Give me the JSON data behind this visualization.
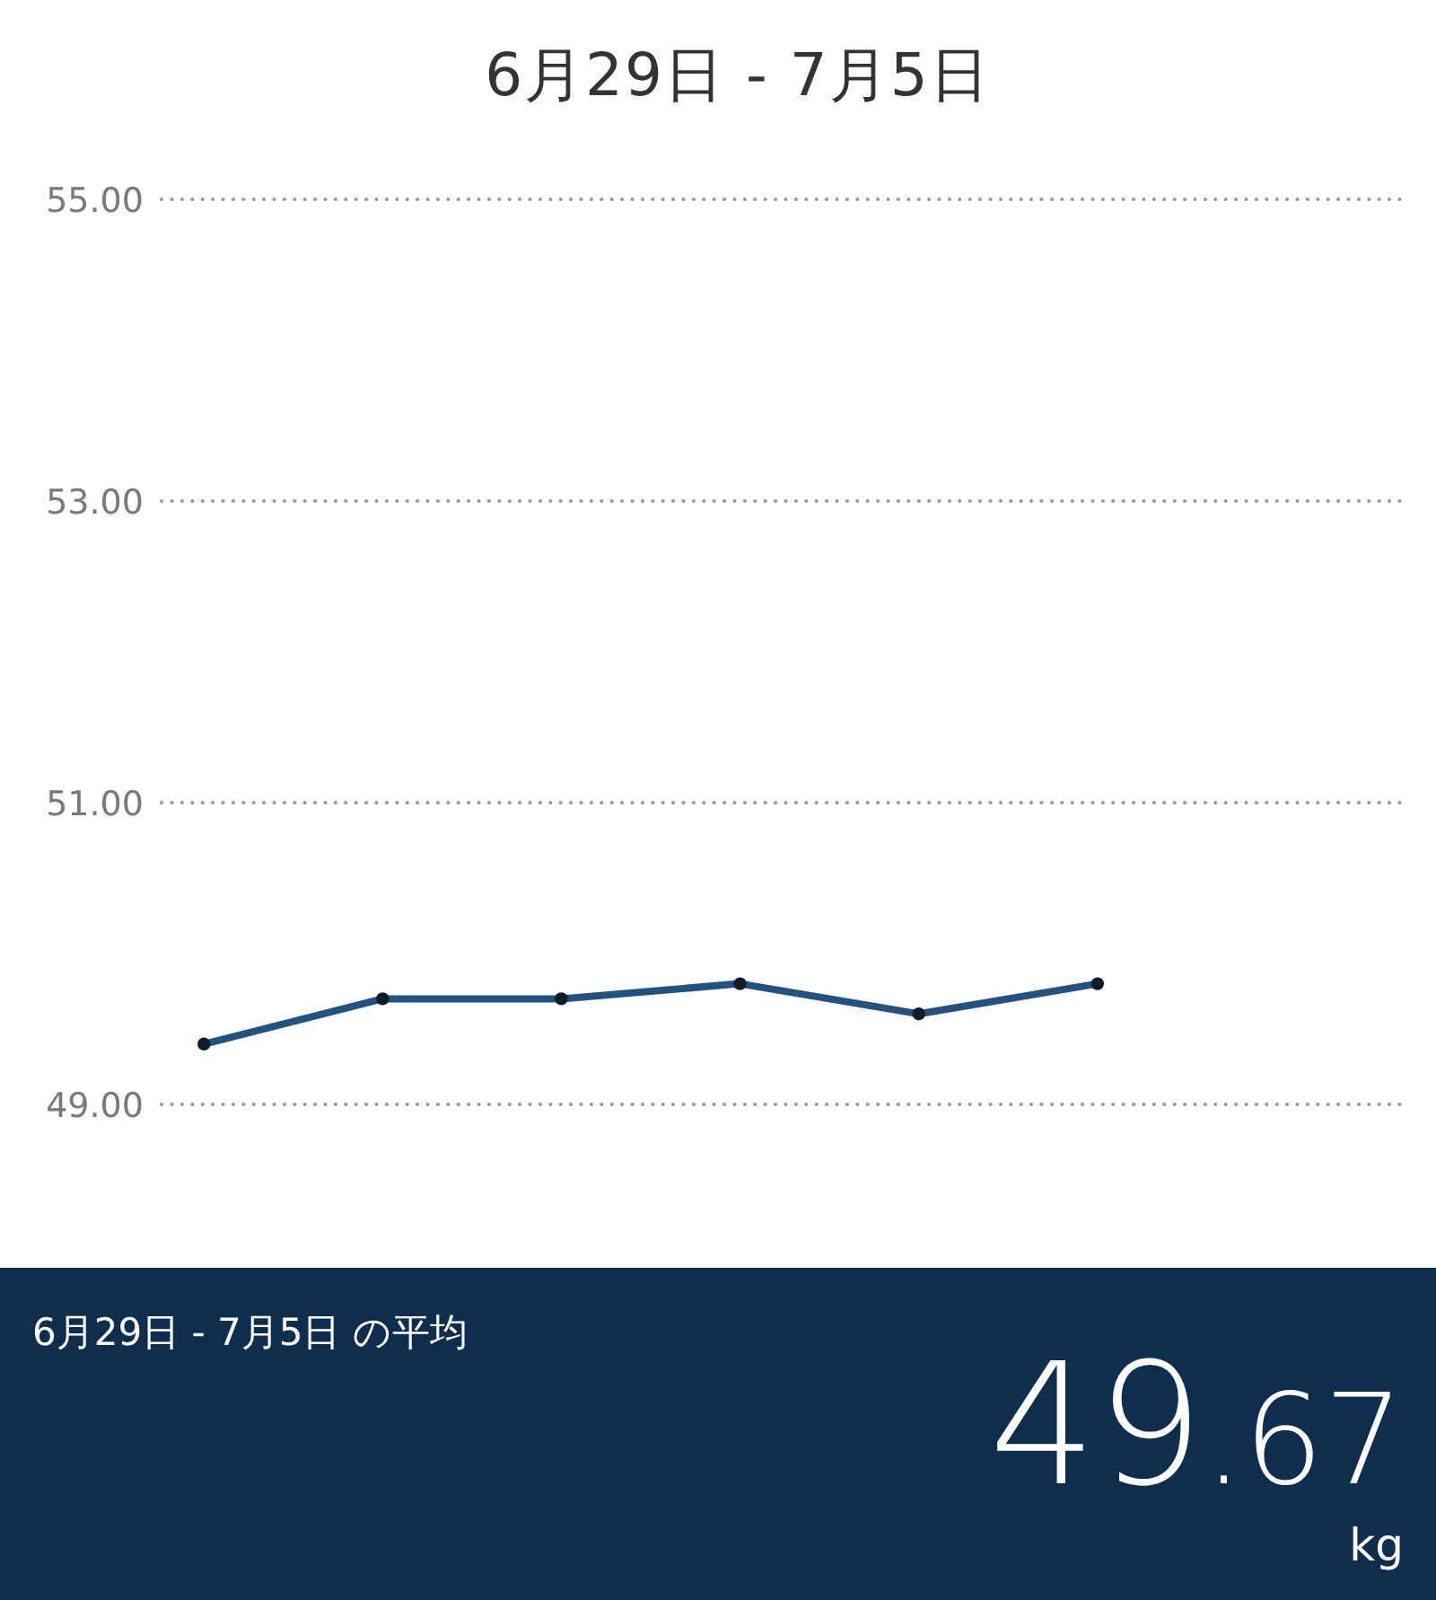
{
  "chart_data": {
    "type": "line",
    "title": "6月29日 - 7月5日",
    "categories": [
      null,
      null,
      null,
      null,
      null,
      null,
      null
    ],
    "series": [
      {
        "color": "#215282",
        "values": [
          49.4,
          49.7,
          49.7,
          49.8,
          49.6,
          49.8,
          null
        ]
      }
    ],
    "ylim": [
      49,
      55
    ],
    "yticks": [
      {
        "value": 49,
        "label": "49.00"
      },
      {
        "value": 51,
        "label": "51.00"
      },
      {
        "value": 53,
        "label": "53.00"
      },
      {
        "value": 55,
        "label": "55.00"
      }
    ],
    "grid": "y",
    "tick_labels": "y",
    "marker": "circle",
    "line_style": "solid",
    "annotations": [
      "6月29日 - 7月5日 の平均",
      "49.67",
      "kg"
    ]
  }
}
